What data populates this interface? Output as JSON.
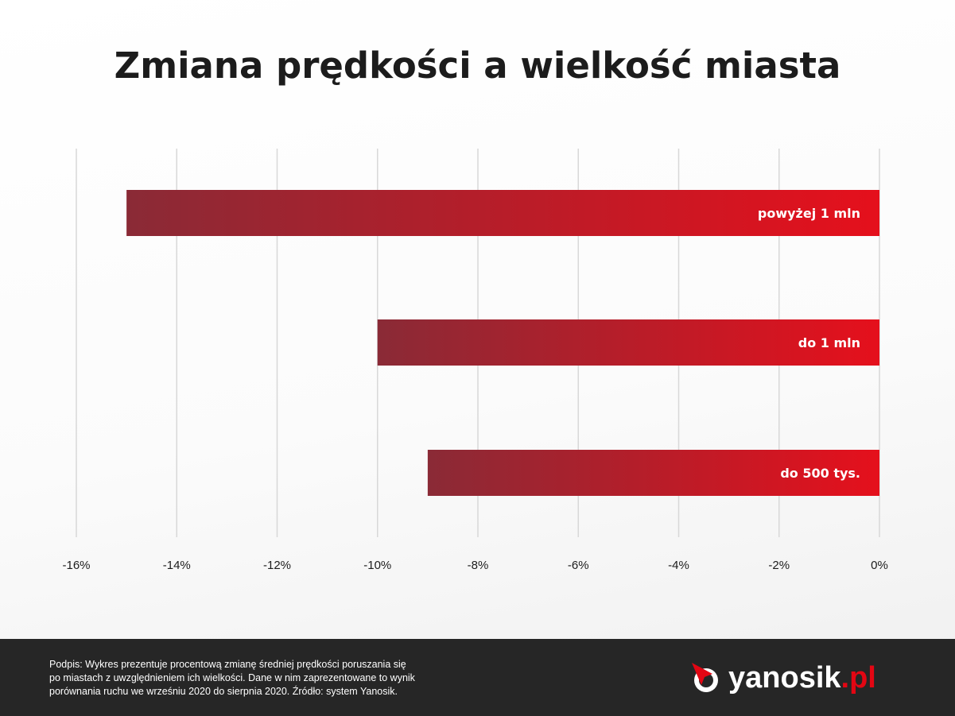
{
  "title": "Zmiana prędkości a wielkość miasta",
  "colors": {
    "bar_start": "#8a2a36",
    "bar_end": "#e5101c",
    "grid": "#d8d8d8",
    "footer_bg": "#262626",
    "brand_red": "#e30613"
  },
  "chart_data": {
    "type": "bar",
    "orientation": "horizontal",
    "title": "Zmiana prędkości a wielkość miasta",
    "xlabel": "",
    "ylabel": "",
    "unit": "%",
    "categories": [
      "powyżej 1 mln",
      "do 1 mln",
      "do 500 tys."
    ],
    "values": [
      -15,
      -10,
      -9
    ],
    "xlim": [
      -16,
      0
    ],
    "xticks": [
      -16,
      -14,
      -12,
      -10,
      -8,
      -6,
      -4,
      -2,
      0
    ],
    "xtick_labels": [
      "-16%",
      "-14%",
      "-12%",
      "-10%",
      "-8%",
      "-6%",
      "-4%",
      "-2%",
      "0%"
    ],
    "grid": true,
    "category_labels_position": "inside-bar-right"
  },
  "footer": {
    "caption": "Podpis: Wykres prezentuje procentową zmianę średniej prędkości poruszania się\npo miastach z uwzględnieniem ich wielkości. Dane w nim zaprezentowane to wynik\nporównania ruchu we wrześniu 2020 do sierpnia 2020. Źródło: system Yanosik."
  },
  "logo": {
    "name": "yanosik",
    "suffix": ".pl",
    "icon": "yanosik-arrow-icon"
  }
}
